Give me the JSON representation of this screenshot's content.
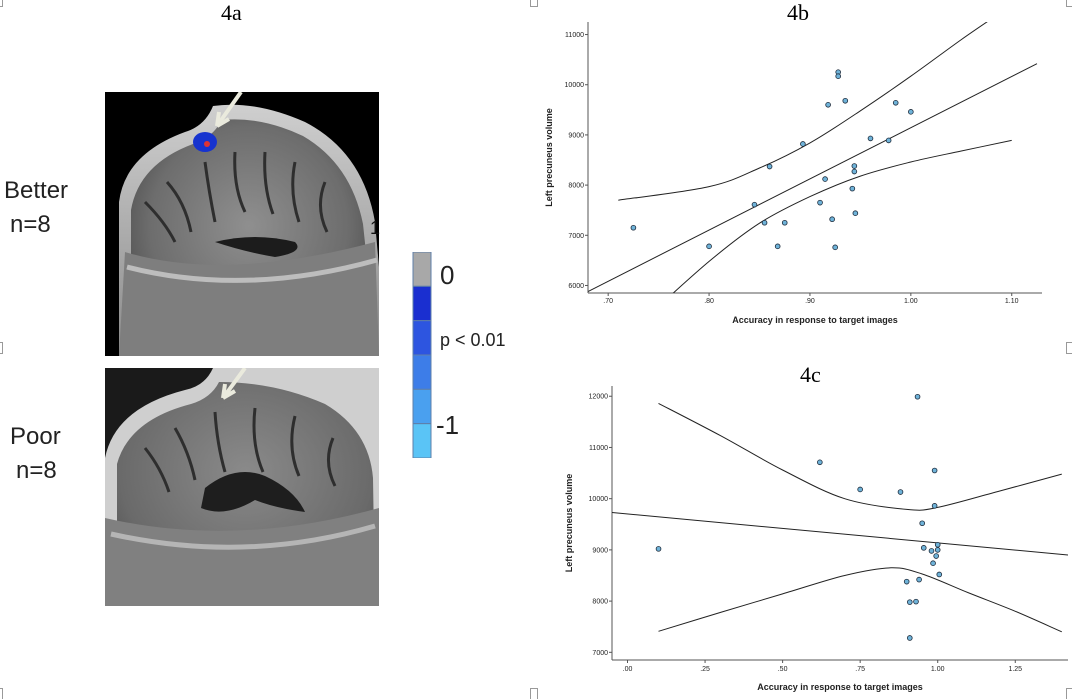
{
  "figure_4a": {
    "panel_label": "4a",
    "groups": [
      {
        "name": "Better",
        "n": "n=8"
      },
      {
        "name": "Poor",
        "n": "n=8"
      }
    ],
    "color_scale": {
      "labels": [
        "0",
        "p < 0.01",
        "-1"
      ],
      "colors": [
        "#a8a8a8",
        "#1a2fd0",
        "#2d55e0",
        "#3d7de8",
        "#4aa0ef",
        "#5ac4f6"
      ]
    },
    "extra_text": "1"
  },
  "chart_data": [
    {
      "panel_label": "4b",
      "type": "scatter",
      "xlabel": "Accuracy in response to target images",
      "ylabel": "Left precuneus volume",
      "xlim": [
        0.68,
        1.13
      ],
      "ylim": [
        5850,
        11250
      ],
      "x_ticks": [
        0.7,
        0.8,
        0.9,
        1.0,
        1.1
      ],
      "x_tick_labels": [
        ".70",
        ".80",
        ".90",
        "1.00",
        "1.10"
      ],
      "y_ticks": [
        6000,
        7000,
        8000,
        9000,
        10000,
        11000
      ],
      "y_tick_labels": [
        "6000",
        "7000",
        "8000",
        "9000",
        "10000",
        "11000"
      ],
      "points": [
        {
          "x": 0.725,
          "y": 7150
        },
        {
          "x": 0.8,
          "y": 6780
        },
        {
          "x": 0.845,
          "y": 7610
        },
        {
          "x": 0.855,
          "y": 7250
        },
        {
          "x": 0.86,
          "y": 8370
        },
        {
          "x": 0.868,
          "y": 6780
        },
        {
          "x": 0.875,
          "y": 7250
        },
        {
          "x": 0.893,
          "y": 8820
        },
        {
          "x": 0.91,
          "y": 7650
        },
        {
          "x": 0.915,
          "y": 8120
        },
        {
          "x": 0.918,
          "y": 9600
        },
        {
          "x": 0.922,
          "y": 7320
        },
        {
          "x": 0.925,
          "y": 6760
        },
        {
          "x": 0.928,
          "y": 10250
        },
        {
          "x": 0.928,
          "y": 10170
        },
        {
          "x": 0.935,
          "y": 9680
        },
        {
          "x": 0.942,
          "y": 7930
        },
        {
          "x": 0.944,
          "y": 8380
        },
        {
          "x": 0.944,
          "y": 8270
        },
        {
          "x": 0.945,
          "y": 7440
        },
        {
          "x": 0.96,
          "y": 8930
        },
        {
          "x": 0.978,
          "y": 8890
        },
        {
          "x": 0.985,
          "y": 9640
        },
        {
          "x": 1.0,
          "y": 9460
        }
      ],
      "fit_line": [
        [
          0.68,
          5880
        ],
        [
          1.125,
          10420
        ]
      ],
      "ci_upper": [
        [
          0.71,
          7700
        ],
        [
          0.8,
          7970
        ],
        [
          0.85,
          8340
        ],
        [
          0.9,
          8840
        ],
        [
          0.95,
          9480
        ],
        [
          1.0,
          10170
        ],
        [
          1.05,
          10900
        ],
        [
          1.09,
          11450
        ]
      ],
      "ci_lower": [
        [
          0.74,
          5400
        ],
        [
          0.8,
          6480
        ],
        [
          0.85,
          7240
        ],
        [
          0.9,
          7770
        ],
        [
          0.95,
          8180
        ],
        [
          1.0,
          8460
        ],
        [
          1.05,
          8680
        ],
        [
          1.1,
          8890
        ]
      ]
    },
    {
      "panel_label": "4c",
      "type": "scatter",
      "xlabel": "Accuracy in response to target images",
      "ylabel": "Left precuneus volume",
      "xlim": [
        -0.05,
        1.42
      ],
      "ylim": [
        6850,
        12200
      ],
      "x_ticks": [
        0.0,
        0.25,
        0.5,
        0.75,
        1.0,
        1.25
      ],
      "x_tick_labels": [
        ".00",
        ".25",
        ".50",
        ".75",
        "1.00",
        "1.25"
      ],
      "y_ticks": [
        7000,
        8000,
        9000,
        10000,
        11000,
        12000
      ],
      "y_tick_labels": [
        "7000",
        "8000",
        "9000",
        "10000",
        "11000",
        "12000"
      ],
      "points": [
        {
          "x": 0.1,
          "y": 9020
        },
        {
          "x": 0.62,
          "y": 10710
        },
        {
          "x": 0.75,
          "y": 10180
        },
        {
          "x": 0.88,
          "y": 10130
        },
        {
          "x": 0.9,
          "y": 8380
        },
        {
          "x": 0.91,
          "y": 7980
        },
        {
          "x": 0.91,
          "y": 7280
        },
        {
          "x": 0.93,
          "y": 7990
        },
        {
          "x": 0.935,
          "y": 11990
        },
        {
          "x": 0.94,
          "y": 8420
        },
        {
          "x": 0.95,
          "y": 9520
        },
        {
          "x": 0.955,
          "y": 9040
        },
        {
          "x": 0.98,
          "y": 8980
        },
        {
          "x": 0.985,
          "y": 8740
        },
        {
          "x": 0.99,
          "y": 10550
        },
        {
          "x": 0.99,
          "y": 9860
        },
        {
          "x": 0.995,
          "y": 8880
        },
        {
          "x": 1.0,
          "y": 9100
        },
        {
          "x": 1.0,
          "y": 9000
        },
        {
          "x": 1.005,
          "y": 8520
        }
      ],
      "fit_line": [
        [
          -0.05,
          9730
        ],
        [
          1.42,
          8900
        ]
      ],
      "ci_upper": [
        [
          0.1,
          11860
        ],
        [
          0.3,
          11230
        ],
        [
          0.5,
          10560
        ],
        [
          0.7,
          10000
        ],
        [
          0.9,
          9790
        ],
        [
          1.0,
          9830
        ],
        [
          1.2,
          10150
        ],
        [
          1.4,
          10480
        ]
      ],
      "ci_lower": [
        [
          0.1,
          7410
        ],
        [
          0.3,
          7780
        ],
        [
          0.5,
          8140
        ],
        [
          0.7,
          8500
        ],
        [
          0.85,
          8650
        ],
        [
          0.95,
          8530
        ],
        [
          1.1,
          8160
        ],
        [
          1.25,
          7800
        ],
        [
          1.4,
          7400
        ]
      ]
    }
  ]
}
